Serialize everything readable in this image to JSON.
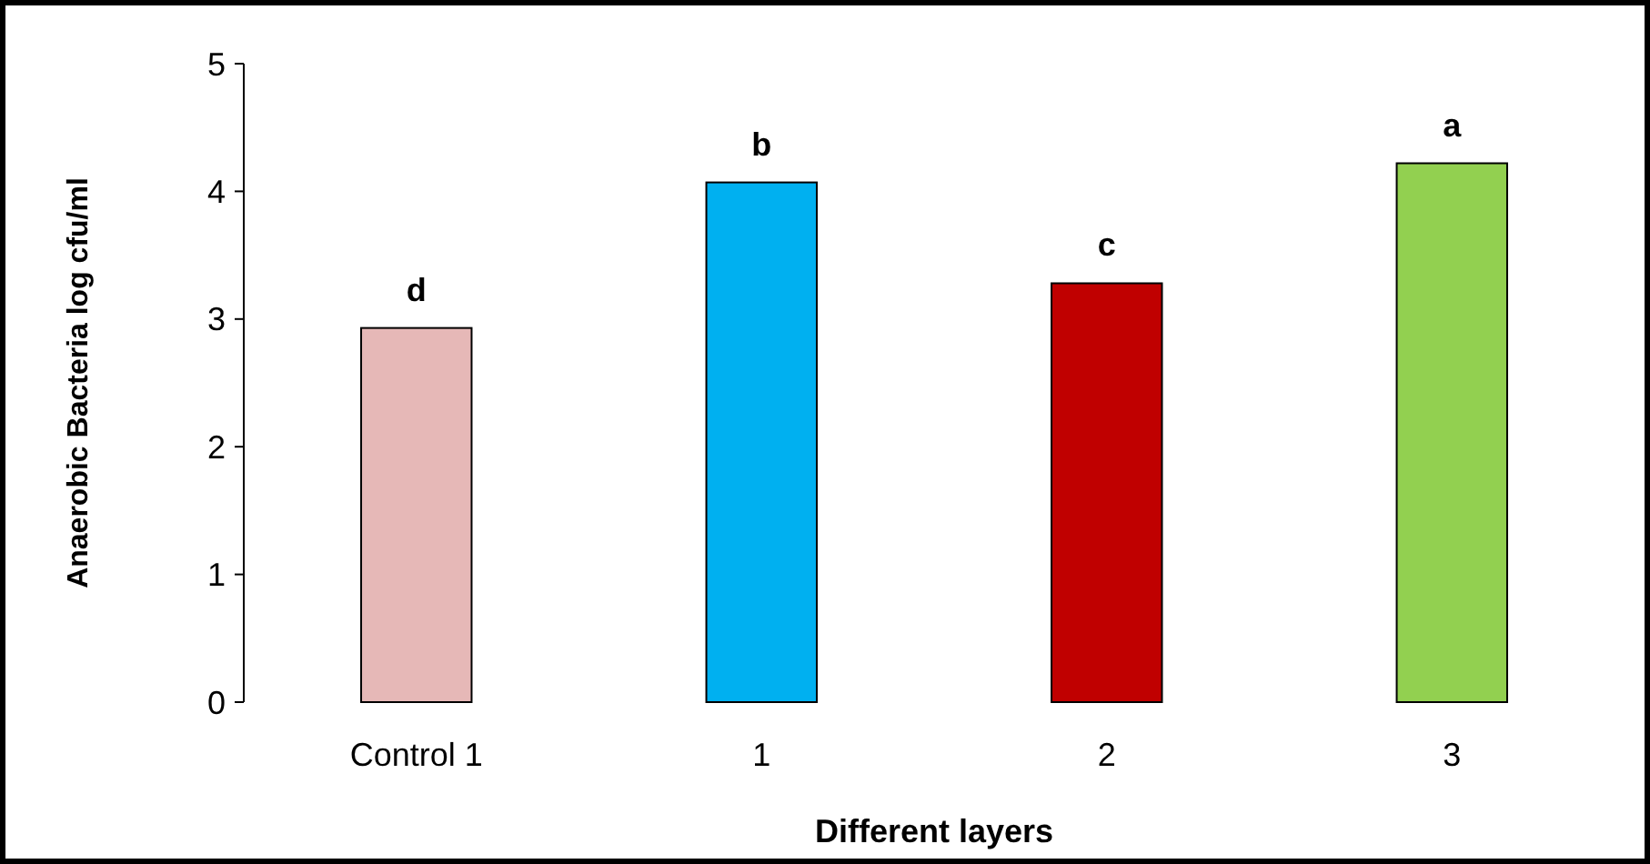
{
  "chart_data": {
    "type": "bar",
    "xlabel": "Different layers",
    "ylabel": "Anaerobic Bacteria log cfu/ml",
    "categories": [
      "Control 1",
      "1",
      "2",
      "3"
    ],
    "values": [
      2.93,
      4.07,
      3.28,
      4.22
    ],
    "colors": [
      "#e6b8b7",
      "#00b0f0",
      "#c00000",
      "#92d050"
    ],
    "ylim": [
      0,
      5
    ],
    "yticks": [
      0,
      1,
      2,
      3,
      4,
      5
    ],
    "grid": false,
    "annotations": [
      {
        "text": "d",
        "x": "Control 1",
        "y": 2.93
      },
      {
        "text": "b",
        "x": "1",
        "y": 4.07
      },
      {
        "text": "c",
        "x": "2",
        "y": 3.28
      },
      {
        "text": "a",
        "x": "3",
        "y": 4.22
      }
    ]
  }
}
